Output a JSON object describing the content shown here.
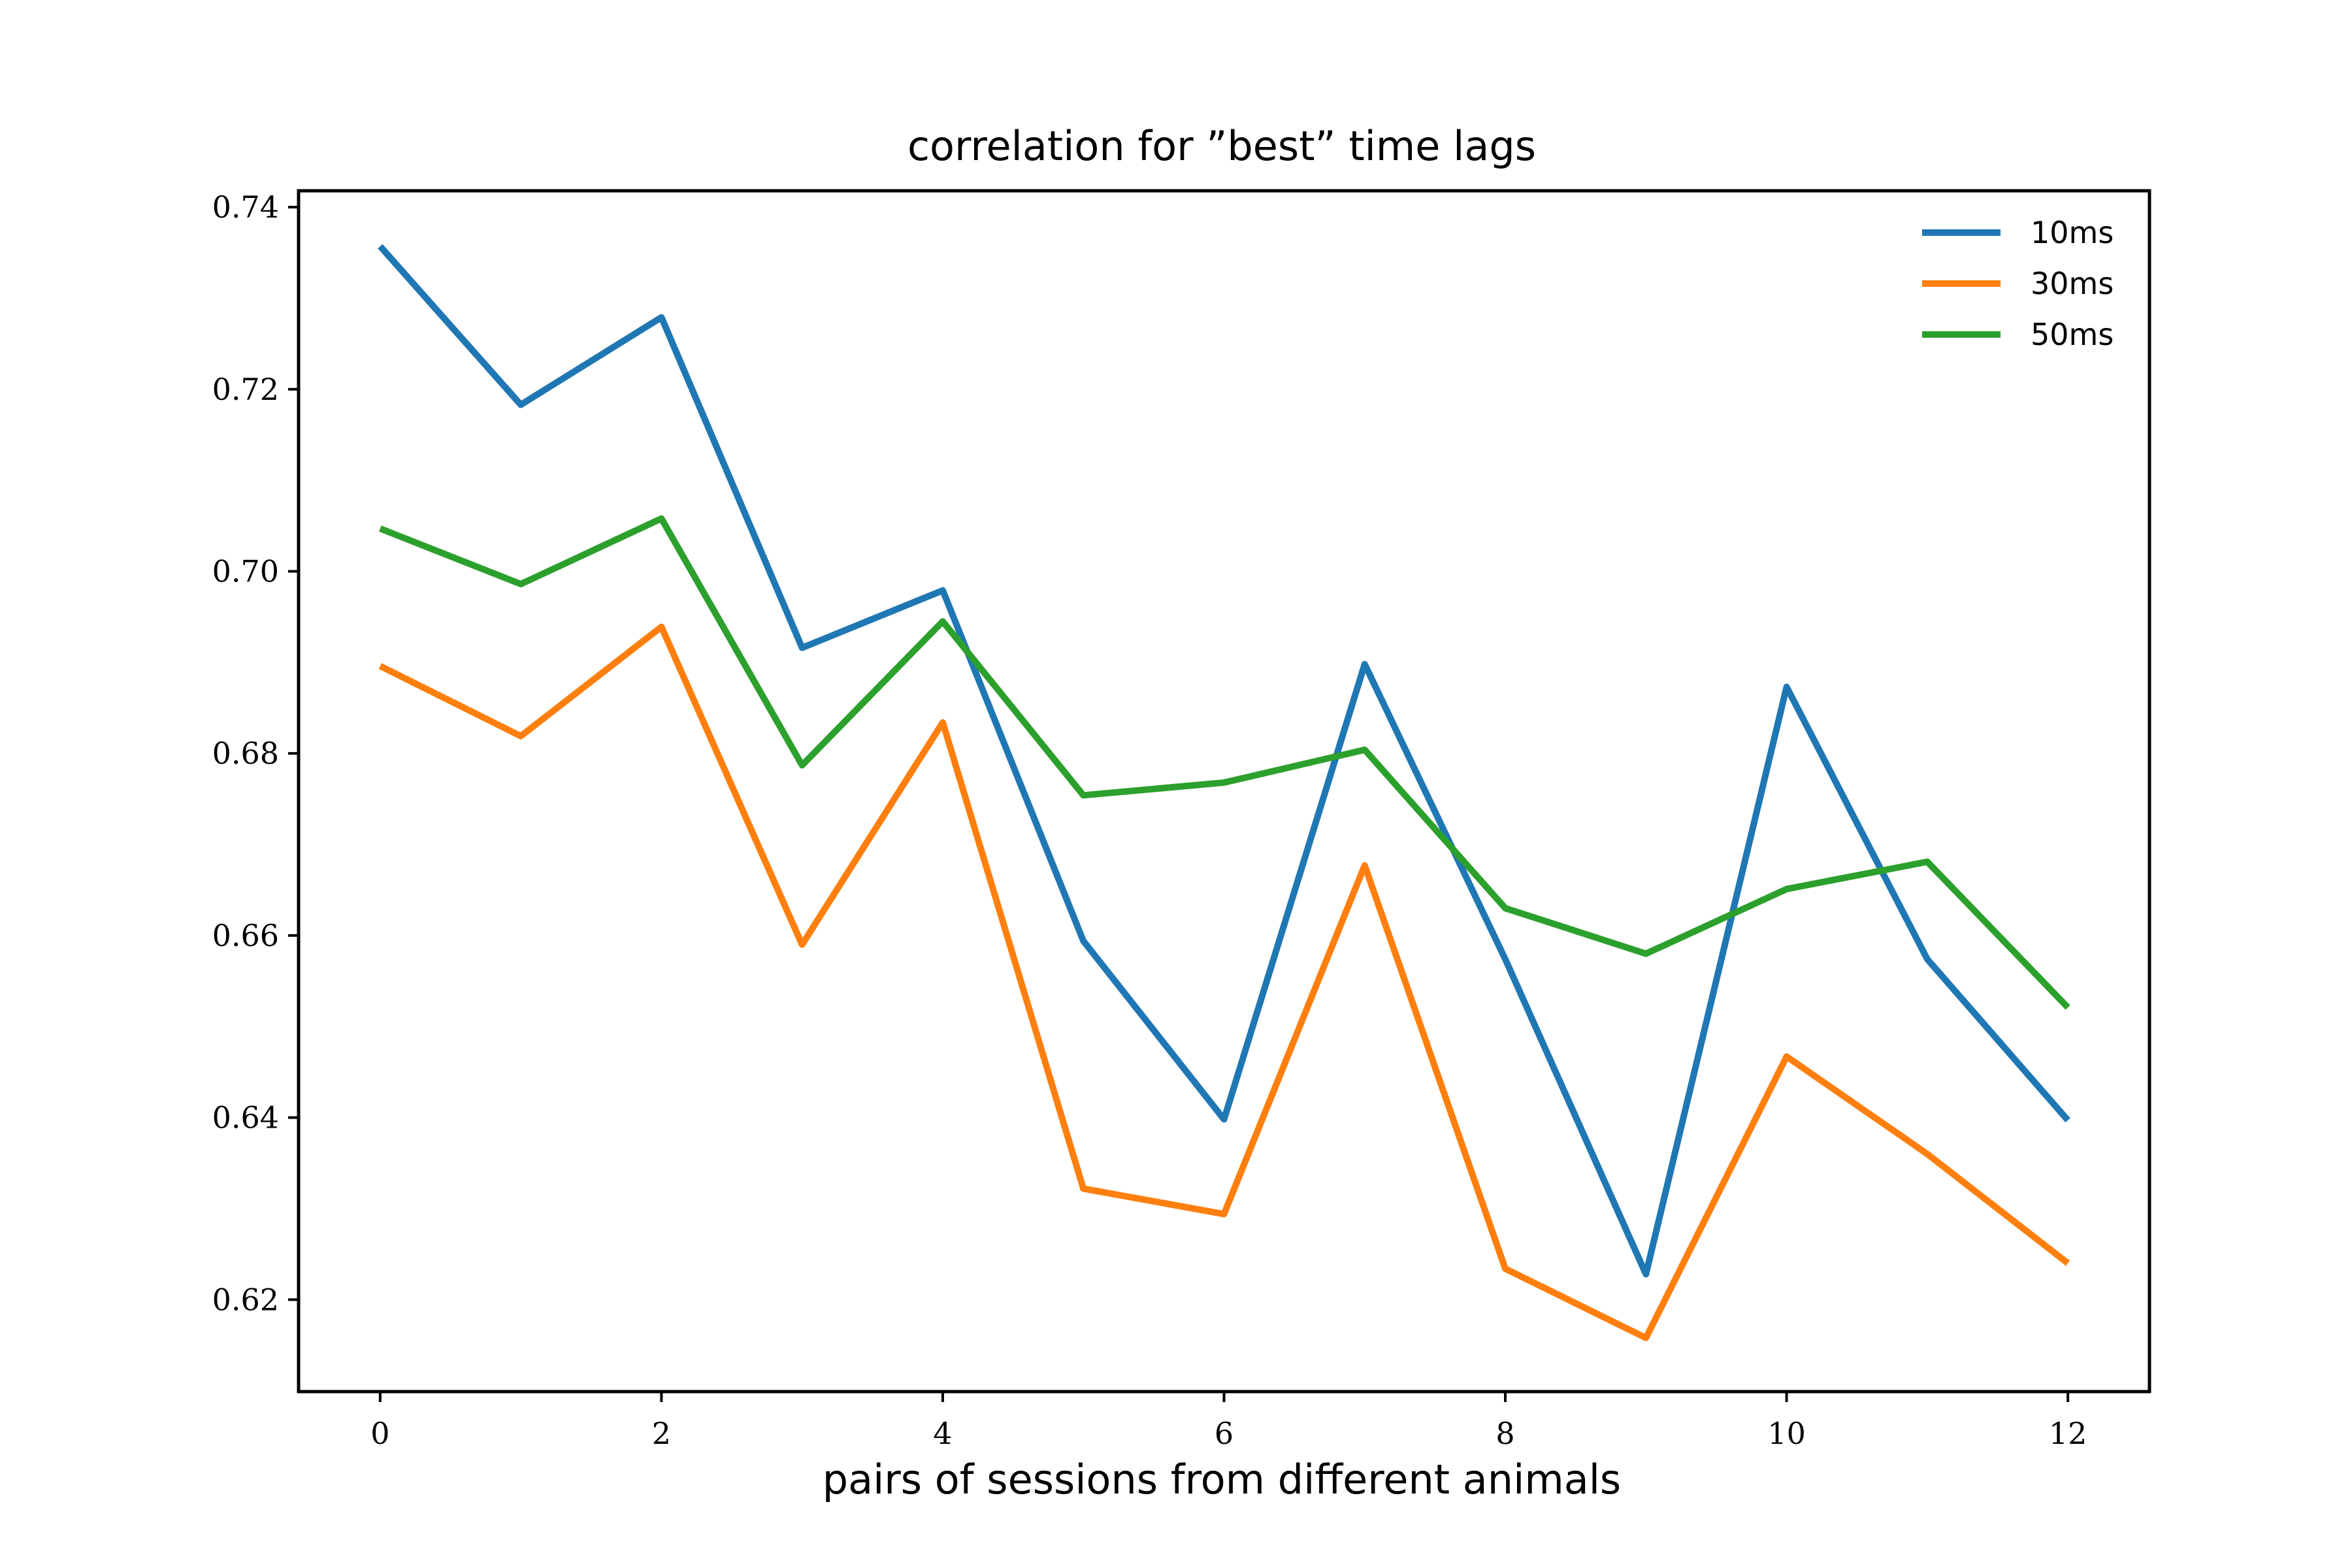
{
  "chart_data": {
    "type": "line",
    "title": "correlation for ”best” time lags",
    "xlabel": "pairs of sessions from different animals",
    "ylabel": "",
    "x": [
      0,
      1,
      2,
      3,
      4,
      5,
      6,
      7,
      8,
      9,
      10,
      11,
      12
    ],
    "xlim": [
      -0.58,
      12.58
    ],
    "ylim": [
      0.6099,
      0.7418
    ],
    "xticks": [
      0,
      2,
      4,
      6,
      8,
      10,
      12
    ],
    "xtick_labels": [
      "0",
      "2",
      "4",
      "6",
      "8",
      "10",
      "12"
    ],
    "yticks": [
      0.62,
      0.64,
      0.66,
      0.68,
      0.7,
      0.72,
      0.74
    ],
    "ytick_labels": [
      "0.62",
      "0.64",
      "0.66",
      "0.68",
      "0.70",
      "0.72",
      "0.74"
    ],
    "grid": false,
    "legend_position": "top-right",
    "series": [
      {
        "name": "10ms",
        "color": "#1f77b4",
        "values": [
          0.7357,
          0.7183,
          0.7279,
          0.6916,
          0.6979,
          0.6594,
          0.6398,
          0.6898,
          0.6574,
          0.6228,
          0.6873,
          0.6574,
          0.6397
        ]
      },
      {
        "name": "30ms",
        "color": "#ff7f0e",
        "values": [
          0.6896,
          0.6819,
          0.6939,
          0.659,
          0.6834,
          0.6322,
          0.6294,
          0.6677,
          0.6234,
          0.6158,
          0.6467,
          0.636,
          0.624
        ]
      },
      {
        "name": "50ms",
        "color": "#2ca02c",
        "values": [
          0.7047,
          0.6986,
          0.7058,
          0.6787,
          0.6945,
          0.6754,
          0.6768,
          0.6804,
          0.663,
          0.658,
          0.6651,
          0.6681,
          0.6521
        ]
      }
    ]
  }
}
